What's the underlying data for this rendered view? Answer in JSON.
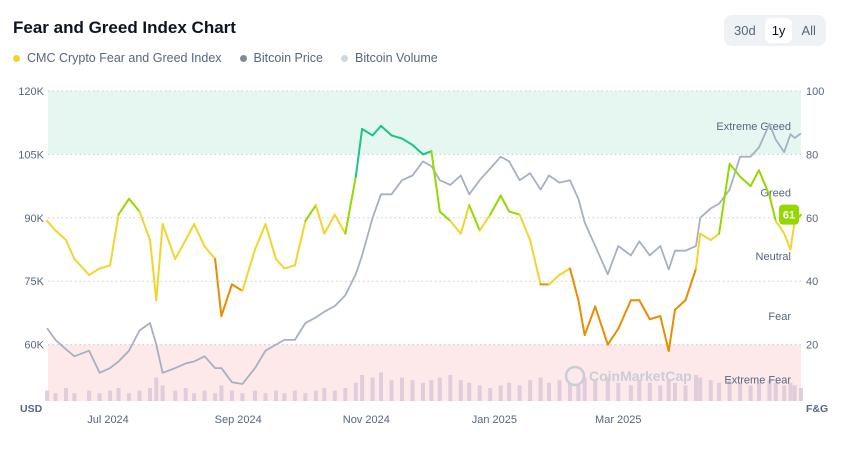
{
  "header": {
    "title": "Fear and Greed Index Chart",
    "range_options": [
      "30d",
      "1y",
      "All"
    ],
    "active_range": "1y"
  },
  "legend": [
    {
      "label": "CMC Crypto Fear and Greed Index",
      "color": "#f3d42f"
    },
    {
      "label": "Bitcoin Price",
      "color": "#808a9d"
    },
    {
      "label": "Bitcoin Volume",
      "color": "#cfd6e4"
    }
  ],
  "watermark": "CoinMarketCap",
  "chart_data": {
    "type": "line",
    "left_axis": {
      "label": "USD",
      "ticks": [
        "60K",
        "75K",
        "90K",
        "105K",
        "120K"
      ],
      "values": [
        60000,
        75000,
        90000,
        105000,
        120000
      ],
      "range": [
        52500,
        120000
      ]
    },
    "right_axis": {
      "label": "F&G",
      "ticks": [
        "20",
        "40",
        "60",
        "80",
        "100"
      ],
      "range": [
        0,
        100
      ]
    },
    "x_ticks": [
      "Jul 2024",
      "Sep 2024",
      "Nov 2024",
      "Jan 2025",
      "Mar 2025"
    ],
    "x_tick_dates": [
      "2024-07-01",
      "2024-09-01",
      "2024-11-01",
      "2025-01-01",
      "2025-03-01"
    ],
    "x_range": [
      "2024-06-01",
      "2025-05-27"
    ],
    "zones": [
      {
        "label": "Extreme Greed",
        "from": 80,
        "to": 100,
        "color": "#e6f7f1"
      },
      {
        "label": "Greed",
        "at": 68
      },
      {
        "label": "Neutral",
        "at": 48
      },
      {
        "label": "Fear",
        "at": 29
      },
      {
        "label": "Extreme Fear",
        "from": 0,
        "to": 20,
        "color": "#fde9ea",
        "at": 9
      }
    ],
    "fg_colors": {
      "extreme_fear": "#ea3943",
      "fear": "#ea8c00",
      "neutral": "#f3d42f",
      "greed": "#93d900",
      "extreme_greed": "#16c784"
    },
    "price_color": "#a6b0c3",
    "volume_color": "#d9c8d8",
    "current_value": 61,
    "grid": true,
    "dates": [
      "2024-06-02",
      "2024-06-06",
      "2024-06-11",
      "2024-06-15",
      "2024-06-22",
      "2024-06-27",
      "2024-07-02",
      "2024-07-06",
      "2024-07-11",
      "2024-07-16",
      "2024-07-21",
      "2024-07-24",
      "2024-07-27",
      "2024-08-02",
      "2024-08-07",
      "2024-08-11",
      "2024-08-16",
      "2024-08-21",
      "2024-08-24",
      "2024-08-29",
      "2024-09-03",
      "2024-09-09",
      "2024-09-14",
      "2024-09-19",
      "2024-09-23",
      "2024-09-28",
      "2024-10-03",
      "2024-10-08",
      "2024-10-12",
      "2024-10-17",
      "2024-10-22",
      "2024-10-27",
      "2024-10-30",
      "2024-11-04",
      "2024-11-08",
      "2024-11-13",
      "2024-11-18",
      "2024-11-23",
      "2024-11-28",
      "2024-12-02",
      "2024-12-06",
      "2024-12-11",
      "2024-12-16",
      "2024-12-20",
      "2024-12-25",
      "2024-12-30",
      "2025-01-04",
      "2025-01-08",
      "2025-01-13",
      "2025-01-18",
      "2025-01-23",
      "2025-01-27",
      "2025-02-01",
      "2025-02-06",
      "2025-02-10",
      "2025-02-13",
      "2025-02-18",
      "2025-02-24",
      "2025-03-01",
      "2025-03-07",
      "2025-03-11",
      "2025-03-16",
      "2025-03-21",
      "2025-03-25",
      "2025-03-28",
      "2025-04-02",
      "2025-04-07",
      "2025-04-09",
      "2025-04-14",
      "2025-04-18",
      "2025-04-23",
      "2025-04-28",
      "2025-05-03",
      "2025-05-07",
      "2025-05-12",
      "2025-05-15",
      "2025-05-19",
      "2025-05-22",
      "2025-05-24",
      "2025-05-27"
    ],
    "series": [
      {
        "name": "CMC Crypto Fear and Greed Index",
        "values": [
          59,
          56,
          53,
          47,
          42,
          44,
          45,
          61,
          66,
          62,
          53,
          34,
          58,
          47,
          53,
          58,
          51,
          47,
          29,
          39,
          37,
          50,
          58,
          47,
          44,
          45,
          59,
          64,
          55,
          61,
          55,
          73,
          88,
          86,
          89,
          86,
          85,
          83,
          80,
          81,
          62,
          59,
          55,
          64,
          56,
          61,
          67,
          62,
          61,
          53,
          39,
          39,
          42,
          44,
          34,
          23,
          32,
          20,
          25,
          34,
          34,
          28,
          29,
          18,
          31,
          34,
          44,
          55,
          53,
          55,
          77,
          73,
          70,
          75,
          67,
          59,
          55,
          50,
          59,
          61
        ]
      },
      {
        "name": "Bitcoin Price",
        "values": [
          69500,
          67000,
          65000,
          63500,
          64700,
          60000,
          61000,
          62400,
          64700,
          69000,
          70600,
          66000,
          60000,
          61000,
          62000,
          62400,
          63500,
          61000,
          61000,
          58000,
          57600,
          61000,
          64700,
          66000,
          67000,
          67000,
          70600,
          71800,
          73000,
          74200,
          76500,
          81000,
          85000,
          93000,
          98000,
          98000,
          101000,
          102000,
          105000,
          104000,
          101000,
          100000,
          102000,
          98000,
          101000,
          103500,
          106000,
          105000,
          101000,
          102500,
          99000,
          102000,
          100500,
          101000,
          97000,
          92000,
          87000,
          81000,
          87000,
          85000,
          88000,
          85000,
          87000,
          82000,
          86000,
          86000,
          87000,
          93000,
          95000,
          96000,
          99000,
          106000,
          106000,
          108000,
          113000,
          109600,
          107000,
          110800,
          110000,
          111000
        ]
      },
      {
        "name": "Bitcoin Volume",
        "values": [
          4,
          3,
          5,
          3,
          4,
          3,
          4,
          5,
          3,
          4,
          5,
          9,
          6,
          4,
          5,
          3,
          4,
          3,
          6,
          4,
          3,
          4,
          3,
          4,
          3,
          4,
          3,
          4,
          5,
          4,
          5,
          7,
          10,
          9,
          11,
          8,
          9,
          8,
          7,
          8,
          9,
          10,
          8,
          7,
          6,
          5,
          6,
          7,
          6,
          8,
          9,
          7,
          8,
          7,
          6,
          9,
          8,
          9,
          7,
          6,
          8,
          7,
          6,
          8,
          7,
          6,
          10,
          9,
          8,
          7,
          8,
          7,
          6,
          7,
          8,
          7,
          6,
          7,
          6,
          5
        ]
      }
    ]
  }
}
